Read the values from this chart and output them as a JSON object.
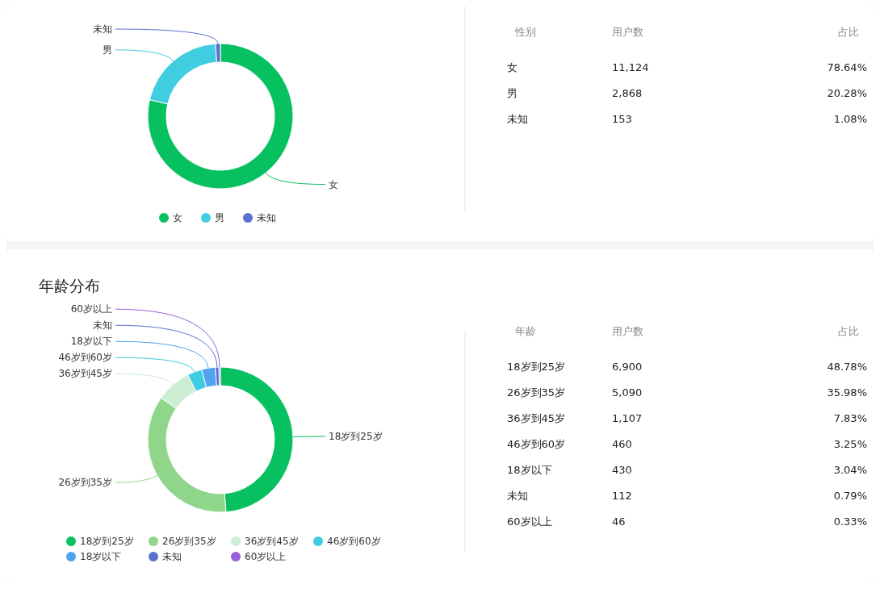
{
  "chart_data": [
    {
      "type": "donut",
      "categories": [
        "女",
        "男",
        "未知"
      ],
      "values": [
        78.64,
        20.28,
        1.08
      ],
      "colors": [
        "#07c160",
        "#40cde0",
        "#5b6fd0"
      ],
      "legend": "bottom"
    },
    {
      "type": "other",
      "annotations": [
        "性别",
        "用户数",
        "占比",
        "女",
        "11,124",
        "78.64%",
        "男",
        "2,868",
        "20.28%",
        "未知",
        "153",
        "1.08%"
      ]
    },
    {
      "type": "donut",
      "title": "年龄分布",
      "categories": [
        "18岁到25岁",
        "26岁到35岁",
        "36岁到45岁",
        "46岁到60岁",
        "18岁以下",
        "未知",
        "60岁以上"
      ],
      "values": [
        48.78,
        35.98,
        7.83,
        3.25,
        3.04,
        0.79,
        0.33
      ],
      "colors": [
        "#07c160",
        "#8fd68b",
        "#cdeed2",
        "#3fcbe0",
        "#4fa3ee",
        "#5b6fd0",
        "#9a60d8"
      ],
      "legend": "bottom"
    },
    {
      "type": "other",
      "annotations": [
        "年龄",
        "用户数",
        "占比",
        "18岁到25岁",
        "6,900",
        "48.78%",
        "26岁到35岁",
        "5,090",
        "35.98%",
        "36岁到45岁",
        "1,107",
        "7.83%",
        "46岁到60岁",
        "460",
        "3.25%",
        "18岁以下",
        "430",
        "3.04%",
        "未知",
        "112",
        "0.79%",
        "60岁以上",
        "46",
        "0.33%"
      ]
    }
  ]
}
